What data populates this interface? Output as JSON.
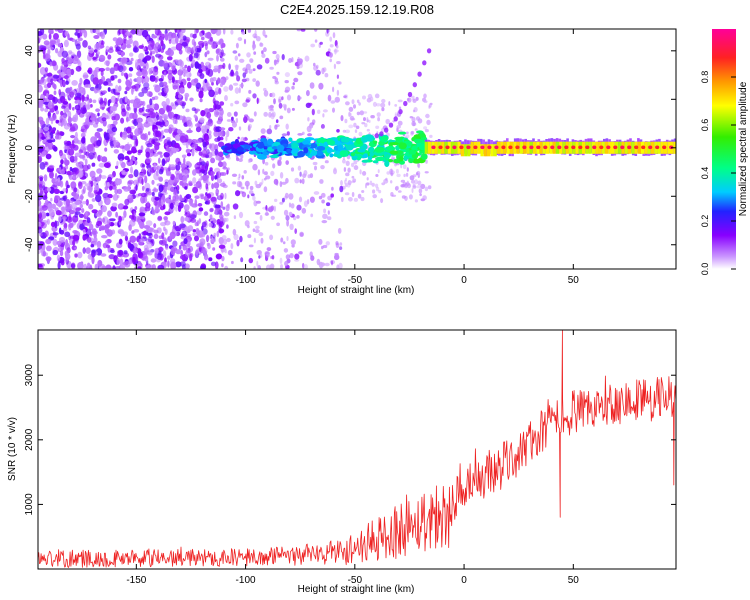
{
  "title": "C2E4.2025.159.12.19.R08",
  "colors": {
    "signal": "#ee3030",
    "noise": "#7a22e8",
    "snr_line": "#ee2222",
    "colormap": [
      "#ffffff",
      "#cc99ff",
      "#8800ff",
      "#2222ff",
      "#00ccff",
      "#00ff88",
      "#33ee00",
      "#ffff00",
      "#ff9900",
      "#ff2222",
      "#ff0099"
    ]
  },
  "chart_data": [
    {
      "type": "heatmap",
      "xlabel": "Height of straight line (km)",
      "ylabel": "Frequency (Hz)",
      "xlim": [
        -195,
        97
      ],
      "ylim": [
        -50,
        49
      ],
      "xticks": [
        -150,
        -100,
        -50,
        0,
        50
      ],
      "yticks": [
        -40,
        -20,
        0,
        20,
        40
      ],
      "grid": false,
      "colorbar": {
        "label": "Normalized spectral amplitude",
        "range": [
          0,
          1
        ],
        "ticks": [
          0.0,
          0.2,
          0.4,
          0.6,
          0.8
        ],
        "tick_labels": [
          "0.0",
          "0.2",
          "0.4",
          "0.6",
          "0.8"
        ]
      },
      "features": {
        "dense_noise_band_km": [
          -195,
          -110
        ],
        "sparse_noise_band_km": [
          -110,
          -55
        ],
        "signal_line_frequency_hz": 0,
        "signal_weak_start_km": -110,
        "signal_strong_start_km": -18,
        "signal_peak_amplitude": 0.95,
        "sweep_start": {
          "x": -40,
          "y": 5
        },
        "sweep_end": {
          "x": -16,
          "y": 40
        }
      }
    },
    {
      "type": "line",
      "xlabel": "Height of straight line (km)",
      "ylabel": "SNR (10 * v/v)",
      "xlim": [
        -195,
        97
      ],
      "ylim": [
        0,
        3700
      ],
      "xticks": [
        -150,
        -100,
        -50,
        0,
        50
      ],
      "yticks": [
        1000,
        2000,
        3000
      ],
      "grid": false,
      "series": [
        {
          "x": [
            -195,
            -180,
            -160,
            -140,
            -120,
            -100,
            -80,
            -70,
            -60,
            -50,
            -45,
            -40,
            -35,
            -30,
            -25,
            -20,
            -15,
            -10,
            -5,
            0,
            5,
            10,
            15,
            20,
            25,
            30,
            35,
            40,
            45,
            50,
            55,
            60,
            65,
            70,
            75,
            80,
            85,
            90,
            95
          ],
          "values": [
            160,
            160,
            165,
            170,
            175,
            180,
            200,
            220,
            260,
            320,
            380,
            450,
            520,
            600,
            680,
            750,
            800,
            850,
            900,
            1100,
            1300,
            1450,
            1550,
            1650,
            1800,
            1950,
            2100,
            2250,
            2350,
            2450,
            2400,
            2500,
            2550,
            2600,
            2550,
            2650,
            2600,
            2700,
            2650
          ],
          "noise_amplitude": [
            140,
            140,
            140,
            140,
            140,
            140,
            150,
            170,
            200,
            250,
            300,
            350,
            400,
            450,
            450,
            500,
            500,
            550,
            550,
            450,
            400,
            400,
            400,
            350,
            350,
            350,
            350,
            350,
            350,
            350,
            350,
            350,
            350,
            350,
            350,
            350,
            350,
            350,
            350
          ]
        }
      ],
      "annotations": {
        "spike_max": {
          "x": 45,
          "y": 3700
        },
        "dip_min": {
          "x": 44,
          "y": 800
        },
        "dip_end": {
          "x": 96,
          "y": 1300
        }
      }
    }
  ]
}
